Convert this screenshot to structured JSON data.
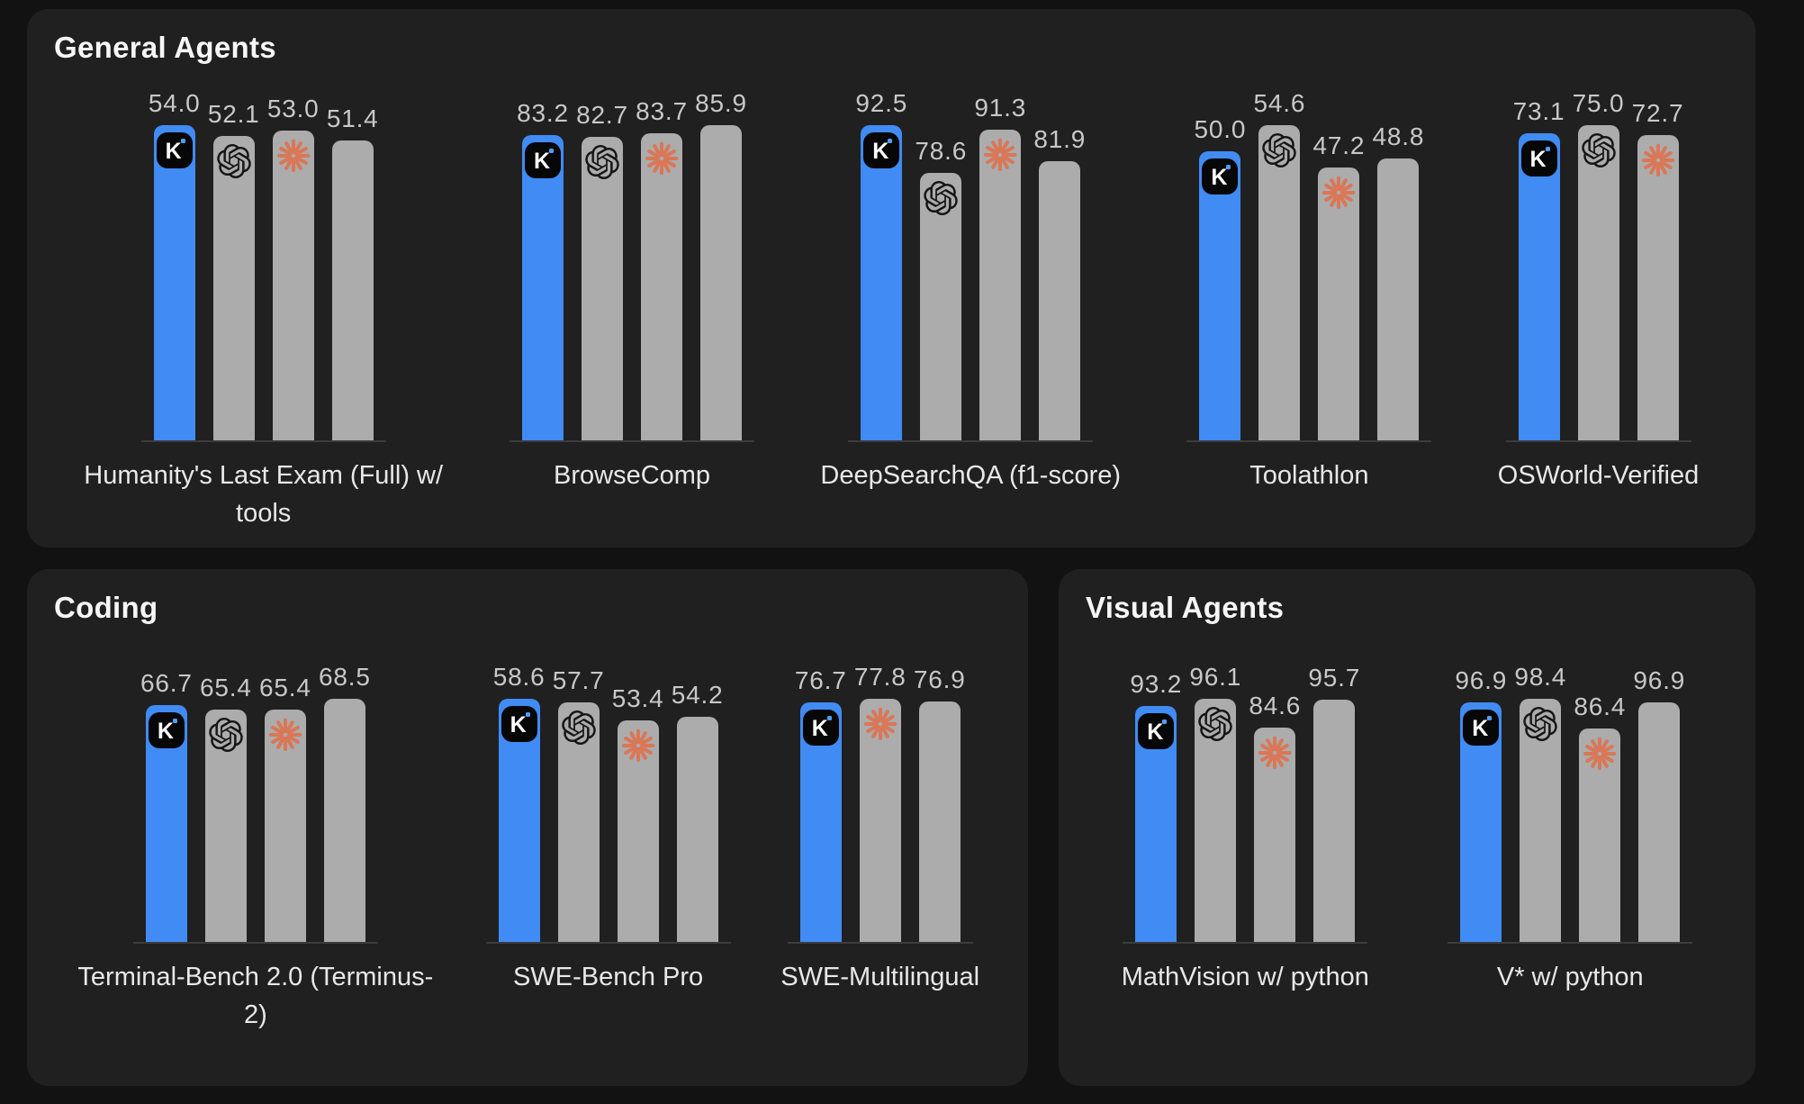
{
  "page": {
    "background": "#121212"
  },
  "colors": {
    "panel_bg": "#202020",
    "accent_blue": "#418BF4",
    "bar_gray": "#ACACAC",
    "value_text": "#C8C8C8",
    "label_text": "#E8E8E8",
    "title_text": "#F6F6F6",
    "baseline": "#3C3C3C",
    "claude_coral": "#D97757",
    "openai_dark": "#161616",
    "kimi_badge_bg": "#070707",
    "kimi_dot_blue": "#4D9FFF"
  },
  "icons": {
    "k_letter": "K",
    "series_icon_names": [
      "k-logo-icon",
      "openai-logo-icon",
      "claude-starburst-icon",
      "gemini-sparkle-icon"
    ]
  },
  "chart_data": [
    {
      "type": "bar",
      "title": "General Agents",
      "value_labels": true,
      "grid": false,
      "baseline": true,
      "categories": [
        "Humanity's Last Exam (Full) w/ tools",
        "BrowseComp",
        "DeepSearchQA (f1-score)",
        "Toolathlon",
        "OSWorld-Verified"
      ],
      "series": [
        {
          "icon": "k-logo-icon",
          "highlight": true,
          "values": [
            54.0,
            83.2,
            92.5,
            50.0,
            73.1
          ]
        },
        {
          "icon": "openai-logo-icon",
          "highlight": false,
          "values": [
            52.1,
            82.7,
            78.6,
            54.6,
            75.0
          ]
        },
        {
          "icon": "claude-starburst-icon",
          "highlight": false,
          "values": [
            53.0,
            83.7,
            91.3,
            47.2,
            72.7
          ]
        },
        {
          "icon": "gemini-sparkle-icon",
          "highlight": false,
          "values": [
            51.4,
            85.9,
            81.9,
            48.8,
            null
          ]
        }
      ]
    },
    {
      "type": "bar",
      "title": "Coding",
      "value_labels": true,
      "grid": false,
      "baseline": true,
      "categories": [
        "Terminal-Bench 2.0 (Terminus-2)",
        "SWE-Bench Pro",
        "SWE-Multilingual"
      ],
      "series": [
        {
          "icon": "k-logo-icon",
          "highlight": true,
          "values": [
            66.7,
            58.6,
            76.7
          ]
        },
        {
          "icon": "openai-logo-icon",
          "highlight": false,
          "values": [
            65.4,
            57.7,
            null
          ]
        },
        {
          "icon": "claude-starburst-icon",
          "highlight": false,
          "values": [
            65.4,
            53.4,
            77.8
          ]
        },
        {
          "icon": "gemini-sparkle-icon",
          "highlight": false,
          "values": [
            68.5,
            54.2,
            76.9
          ]
        }
      ]
    },
    {
      "type": "bar",
      "title": "Visual Agents",
      "value_labels": true,
      "grid": false,
      "baseline": true,
      "categories": [
        "MathVision w/ python",
        "V* w/ python"
      ],
      "series": [
        {
          "icon": "k-logo-icon",
          "highlight": true,
          "values": [
            93.2,
            96.9
          ]
        },
        {
          "icon": "openai-logo-icon",
          "highlight": false,
          "values": [
            96.1,
            98.4
          ]
        },
        {
          "icon": "claude-starburst-icon",
          "highlight": false,
          "values": [
            84.6,
            86.4
          ]
        },
        {
          "icon": "gemini-sparkle-icon",
          "highlight": false,
          "values": [
            95.7,
            96.9
          ]
        }
      ]
    }
  ]
}
